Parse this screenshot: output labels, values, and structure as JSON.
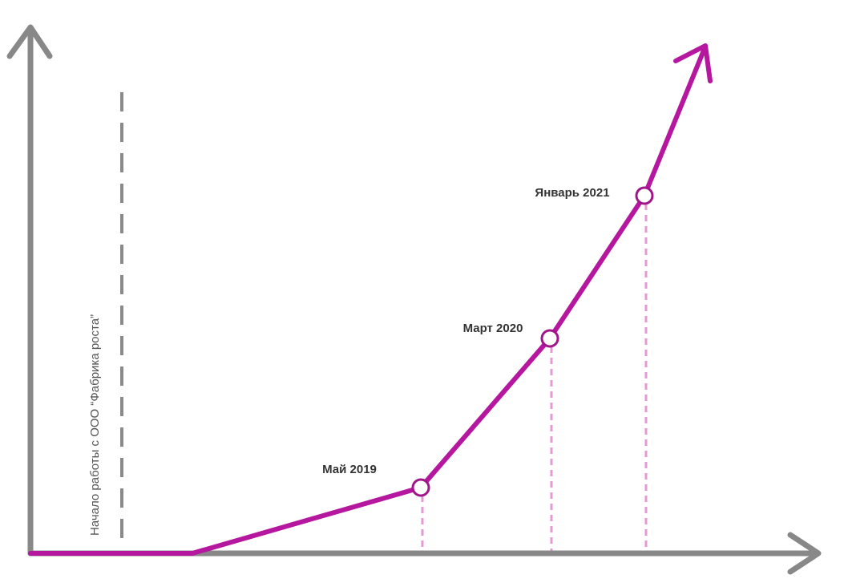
{
  "annotation": "Начало работы с ООО “Фабрика роста”",
  "points": [
    {
      "label": "Май 2019"
    },
    {
      "label": "Март 2020"
    },
    {
      "label": "Январь 2021"
    }
  ]
}
